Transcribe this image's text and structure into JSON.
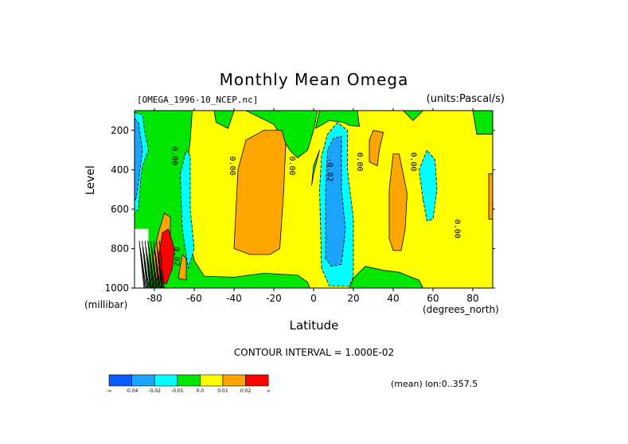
{
  "chart_data": {
    "type": "heatmap",
    "title": "Monthly Mean Omega",
    "dataset": "[OMEGA_1996-10_NCEP.nc]",
    "units": "(units:Pascal/s)",
    "xlabel": "Latitude",
    "ylabel": "Level",
    "x_unit": "(degrees_north)",
    "y_unit": "(millibar)",
    "xlim": [
      -90,
      90
    ],
    "ylim": [
      1000,
      100
    ],
    "x_ticks": [
      -80,
      -60,
      -40,
      -20,
      0,
      20,
      40,
      60,
      80
    ],
    "y_ticks": [
      200,
      400,
      600,
      800,
      1000
    ],
    "contour_interval_text": "CONTOUR INTERVAL = 1.000E-02",
    "subtitle": "(mean) lon:0..357.5",
    "colorbar": {
      "colors": [
        "#0a5cff",
        "#1aa3ff",
        "#00ffff",
        "#00e600",
        "#ffff00",
        "#ffa500",
        "#ff0000"
      ],
      "labels": [
        "-∞",
        "-0.04",
        "-0.02",
        "-0.01",
        "0.0",
        "0.01",
        "0.02",
        "∞"
      ]
    },
    "contour_labels": [
      {
        "text": "0.00",
        "lat": -71,
        "level": 330
      },
      {
        "text": "0.00",
        "lat": -42,
        "level": 380
      },
      {
        "text": "0.00",
        "lat": -12,
        "level": 380
      },
      {
        "text": "-0.02",
        "lat": 7,
        "level": 400
      },
      {
        "text": "0.00",
        "lat": 22,
        "level": 360
      },
      {
        "text": "0.00",
        "lat": 49,
        "level": 360
      },
      {
        "text": "0.00",
        "lat": 71,
        "level": 700
      },
      {
        "text": "0.02",
        "lat": -70,
        "level": 840
      }
    ],
    "regions": [
      {
        "value_class": 4,
        "level_range": [
          100,
          1000
        ],
        "lat_range": [
          -90,
          90
        ],
        "shape": "rect"
      },
      {
        "value_class": 3,
        "polygon": [
          [
            -90,
            100
          ],
          [
            -61,
            100
          ],
          [
            -62,
            250
          ],
          [
            -66,
            600
          ],
          [
            -60,
            860
          ],
          [
            -55,
            940
          ],
          [
            -40,
            945
          ],
          [
            -25,
            925
          ],
          [
            -8,
            935
          ],
          [
            -3,
            970
          ],
          [
            -2,
            1000
          ],
          [
            -90,
            1000
          ]
        ]
      },
      {
        "value_class": 3,
        "polygon": [
          [
            -50,
            100
          ],
          [
            -40,
            100
          ],
          [
            -43,
            190
          ],
          [
            -49,
            160
          ]
        ]
      },
      {
        "value_class": 3,
        "polygon": [
          [
            -34,
            100
          ],
          [
            2,
            100
          ],
          [
            0,
            200
          ],
          [
            -3,
            300
          ],
          [
            -8,
            340
          ],
          [
            -12,
            300
          ],
          [
            -20,
            170
          ]
        ]
      },
      {
        "value_class": 3,
        "polygon": [
          [
            0,
            380
          ],
          [
            3,
            300
          ],
          [
            0,
            420
          ],
          [
            -1,
            480
          ]
        ]
      },
      {
        "value_class": 3,
        "polygon": [
          [
            3,
            100
          ],
          [
            22,
            100
          ],
          [
            23,
            180
          ],
          [
            18,
            175
          ],
          [
            15,
            160
          ],
          [
            8,
            150
          ],
          [
            1,
            190
          ]
        ]
      },
      {
        "value_class": 3,
        "polygon": [
          [
            18,
            1000
          ],
          [
            20,
            950
          ],
          [
            26,
            890
          ],
          [
            35,
            910
          ],
          [
            43,
            920
          ],
          [
            53,
            960
          ],
          [
            55,
            1000
          ]
        ]
      },
      {
        "value_class": 3,
        "polygon": [
          [
            45,
            100
          ],
          [
            55,
            100
          ],
          [
            50,
            150
          ]
        ]
      },
      {
        "value_class": 3,
        "polygon": [
          [
            80,
            100
          ],
          [
            90,
            100
          ],
          [
            90,
            220
          ],
          [
            82,
            220
          ]
        ]
      },
      {
        "value_class": 2,
        "polygon": [
          [
            -90,
            110
          ],
          [
            -86,
            120
          ],
          [
            -85,
            200
          ],
          [
            -83,
            300
          ],
          [
            -86,
            380
          ],
          [
            -87,
            460
          ],
          [
            -88,
            600
          ],
          [
            -90,
            620
          ]
        ]
      },
      {
        "value_class": 2,
        "polygon": [
          [
            -67,
            420
          ],
          [
            -64,
            300
          ],
          [
            -62,
            330
          ],
          [
            -62,
            600
          ],
          [
            -60,
            800
          ],
          [
            -63,
            900
          ],
          [
            -66,
            700
          ]
        ]
      },
      {
        "value_class": 2,
        "polygon": [
          [
            4,
            900
          ],
          [
            3,
            500
          ],
          [
            4,
            330
          ],
          [
            7,
            220
          ],
          [
            12,
            160
          ],
          [
            17,
            200
          ],
          [
            17,
            400
          ],
          [
            20,
            650
          ],
          [
            20,
            940
          ],
          [
            18,
            990
          ],
          [
            8,
            990
          ]
        ]
      },
      {
        "value_class": 2,
        "polygon": [
          [
            55,
            550
          ],
          [
            53,
            400
          ],
          [
            57,
            300
          ],
          [
            61,
            350
          ],
          [
            62,
            500
          ],
          [
            60,
            650
          ],
          [
            57,
            660
          ]
        ]
      },
      {
        "value_class": 1,
        "polygon": [
          [
            -90,
            140
          ],
          [
            -88,
            160
          ],
          [
            -86,
            300
          ],
          [
            -88,
            460
          ],
          [
            -89,
            540
          ],
          [
            -90,
            560
          ]
        ]
      },
      {
        "value_class": 1,
        "polygon": [
          [
            6,
            850
          ],
          [
            6,
            500
          ],
          [
            7,
            300
          ],
          [
            10,
            240
          ],
          [
            14,
            230
          ],
          [
            14,
            500
          ],
          [
            16,
            700
          ],
          [
            14,
            880
          ],
          [
            9,
            890
          ]
        ]
      },
      {
        "value_class": 5,
        "polygon": [
          [
            -40,
            800
          ],
          [
            -38,
            400
          ],
          [
            -34,
            250
          ],
          [
            -25,
            200
          ],
          [
            -16,
            200
          ],
          [
            -14,
            270
          ],
          [
            -15,
            500
          ],
          [
            -17,
            800
          ],
          [
            -22,
            830
          ],
          [
            -32,
            830
          ]
        ]
      },
      {
        "value_class": 5,
        "polygon": [
          [
            28,
            360
          ],
          [
            28,
            250
          ],
          [
            30,
            200
          ],
          [
            35,
            210
          ],
          [
            33,
            300
          ],
          [
            32,
            380
          ]
        ]
      },
      {
        "value_class": 5,
        "polygon": [
          [
            38,
            750
          ],
          [
            38,
            500
          ],
          [
            40,
            320
          ],
          [
            43,
            320
          ],
          [
            45,
            420
          ],
          [
            47,
            520
          ],
          [
            46,
            700
          ],
          [
            44,
            810
          ],
          [
            40,
            810
          ]
        ]
      },
      {
        "value_class": 5,
        "polygon": [
          [
            88,
            650
          ],
          [
            88,
            420
          ],
          [
            90,
            420
          ],
          [
            90,
            650
          ]
        ]
      },
      {
        "value_class": 5,
        "polygon": [
          [
            -78,
            720
          ],
          [
            -75,
            620
          ],
          [
            -72,
            640
          ],
          [
            -72,
            800
          ],
          [
            -74,
            920
          ],
          [
            -79,
            960
          ],
          [
            -81,
            850
          ]
        ]
      },
      {
        "value_class": 6,
        "polygon": [
          [
            -78,
            850
          ],
          [
            -76,
            720
          ],
          [
            -73,
            700
          ],
          [
            -70,
            800
          ],
          [
            -71,
            900
          ],
          [
            -74,
            980
          ],
          [
            -77,
            960
          ]
        ]
      },
      {
        "value_class": 5,
        "polygon": [
          [
            -68,
            950
          ],
          [
            -66,
            830
          ],
          [
            -64,
            850
          ],
          [
            -64,
            960
          ]
        ]
      }
    ],
    "missing_region": {
      "lat_range": [
        -90,
        -83
      ],
      "level_range": [
        700,
        1000
      ]
    }
  }
}
